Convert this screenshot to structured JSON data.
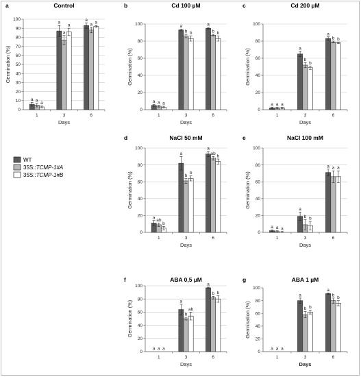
{
  "legend": {
    "items": [
      {
        "label": "WT",
        "prefix": "",
        "suffix": "",
        "color": "#5a5a5a"
      },
      {
        "label": "",
        "prefix": "35S::",
        "suffix": "TCMP-1#A",
        "color": "#b8b8b8"
      },
      {
        "label": "",
        "prefix": "35S::",
        "suffix": "TCMP-1#B",
        "color": "#ffffff"
      }
    ]
  },
  "chart_data": [
    {
      "type": "bar",
      "letter": "a",
      "title": "Control",
      "xlabel": "Days",
      "ylabel": "Germination (%)",
      "ylim": [
        0,
        100
      ],
      "yticks": [
        0,
        10,
        20,
        30,
        40,
        50,
        60,
        70,
        80,
        90,
        100
      ],
      "grid": true,
      "categories": [
        "1",
        "3",
        "6"
      ],
      "series": [
        {
          "values": [
            6,
            87,
            93
          ],
          "errors": [
            2,
            6,
            3
          ],
          "letters": [
            "a",
            "a",
            "a"
          ]
        },
        {
          "values": [
            5,
            77,
            88
          ],
          "errors": [
            2,
            5,
            3
          ],
          "letters": [
            "a",
            "a",
            "a"
          ]
        },
        {
          "values": [
            3,
            86,
            92
          ],
          "errors": [
            1,
            4,
            1
          ],
          "letters": [
            "a",
            "a",
            "a"
          ]
        }
      ]
    },
    {
      "type": "bar",
      "letter": "b",
      "title": "Cd 100 µM",
      "xlabel": "Days",
      "ylabel": "Germination (%)",
      "ylim": [
        0,
        100
      ],
      "yticks": [
        0,
        20,
        40,
        60,
        80,
        100
      ],
      "grid": true,
      "categories": [
        "1",
        "3",
        "6"
      ],
      "series": [
        {
          "values": [
            5,
            93,
            95
          ],
          "errors": [
            1,
            1,
            1
          ],
          "letters": [
            "a",
            "a",
            "a"
          ]
        },
        {
          "values": [
            4,
            86,
            87
          ],
          "errors": [
            1,
            2,
            1
          ],
          "letters": [
            "a",
            "b",
            "b"
          ]
        },
        {
          "values": [
            3,
            83,
            83
          ],
          "errors": [
            1,
            3,
            3
          ],
          "letters": [
            "a",
            "b",
            "b"
          ]
        }
      ]
    },
    {
      "type": "bar",
      "letter": "c",
      "title": "Cd 200 µM",
      "xlabel": "Days",
      "ylabel": "Germination (%)",
      "ylim": [
        0,
        100
      ],
      "yticks": [
        0,
        20,
        40,
        60,
        80,
        100
      ],
      "grid": true,
      "categories": [
        "1",
        "3",
        "6"
      ],
      "series": [
        {
          "values": [
            2,
            65,
            83
          ],
          "errors": [
            1,
            3,
            2
          ],
          "letters": [
            "a",
            "a",
            "a"
          ]
        },
        {
          "values": [
            2,
            52,
            79
          ],
          "errors": [
            1,
            3,
            1
          ],
          "letters": [
            "a",
            "b",
            "b"
          ]
        },
        {
          "values": [
            2,
            49,
            78
          ],
          "errors": [
            1,
            2,
            1
          ],
          "letters": [
            "a",
            "b",
            "b"
          ]
        }
      ]
    },
    {
      "type": "bar",
      "letter": "d",
      "title": "NaCl 50 mM",
      "xlabel": "Days",
      "ylabel": "Germination (%)",
      "ylim": [
        0,
        100
      ],
      "yticks": [
        0,
        20,
        40,
        60,
        80,
        100
      ],
      "grid": true,
      "categories": [
        "1",
        "3",
        "6"
      ],
      "series": [
        {
          "values": [
            11,
            82,
            93
          ],
          "errors": [
            3,
            8,
            3
          ],
          "letters": [
            "a",
            "a",
            "a"
          ]
        },
        {
          "values": [
            9,
            61,
            88
          ],
          "errors": [
            2,
            3,
            2
          ],
          "letters": [
            "ab",
            "b",
            "ab"
          ]
        },
        {
          "values": [
            5,
            64,
            84
          ],
          "errors": [
            2,
            3,
            3
          ],
          "letters": [
            "b",
            "b",
            "b"
          ]
        }
      ]
    },
    {
      "type": "bar",
      "letter": "e",
      "title": "NaCl 100 mM",
      "xlabel": "Days",
      "ylabel": "Germination (%)",
      "ylim": [
        0,
        100
      ],
      "yticks": [
        0,
        20,
        40,
        60,
        80,
        100
      ],
      "grid": true,
      "categories": [
        "1",
        "3",
        "6"
      ],
      "series": [
        {
          "values": [
            2,
            19,
            71
          ],
          "errors": [
            1,
            5,
            4
          ],
          "letters": [
            "a",
            "a",
            "a"
          ]
        },
        {
          "values": [
            1,
            9,
            66
          ],
          "errors": [
            1,
            6,
            7
          ],
          "letters": [
            "a",
            "b",
            "a"
          ]
        },
        {
          "values": [
            0,
            8,
            66
          ],
          "errors": [
            1,
            5,
            7
          ],
          "letters": [
            "a",
            "b",
            "a"
          ]
        }
      ]
    },
    {
      "type": "bar",
      "letter": "f",
      "title": "ABA 0,5 µM",
      "xlabel": "Days",
      "ylabel": "Germination (%)",
      "ylim": [
        0,
        100
      ],
      "yticks": [
        0,
        20,
        40,
        60,
        80,
        100
      ],
      "grid": true,
      "categories": [
        "1",
        "3",
        "6"
      ],
      "series": [
        {
          "values": [
            0,
            64,
            97
          ],
          "errors": [
            0,
            8,
            1
          ],
          "letters": [
            "a",
            "a",
            "a"
          ]
        },
        {
          "values": [
            0,
            50,
            82
          ],
          "errors": [
            0,
            2,
            2
          ],
          "letters": [
            "a",
            "b",
            "b"
          ]
        },
        {
          "values": [
            0,
            54,
            80
          ],
          "errors": [
            0,
            6,
            5
          ],
          "letters": [
            "a",
            "ab",
            "b"
          ]
        }
      ]
    },
    {
      "type": "bar",
      "letter": "g",
      "title": "ABA 1 µM",
      "xlabel": "Days",
      "ylabel": "Germination (%)",
      "ylim": [
        0,
        100
      ],
      "yticks": [
        0,
        20,
        40,
        60,
        80,
        100
      ],
      "grid": false,
      "categories": [
        "1",
        "3",
        "6"
      ],
      "series": [
        {
          "values": [
            0,
            80,
            91
          ],
          "errors": [
            0,
            4,
            1
          ],
          "letters": [
            "a",
            "a",
            "a"
          ]
        },
        {
          "values": [
            0,
            58,
            80
          ],
          "errors": [
            0,
            5,
            4
          ],
          "letters": [
            "a",
            "b",
            "b"
          ]
        },
        {
          "values": [
            0,
            62,
            76
          ],
          "errors": [
            0,
            3,
            4
          ],
          "letters": [
            "a",
            "b",
            "b"
          ]
        }
      ]
    }
  ]
}
